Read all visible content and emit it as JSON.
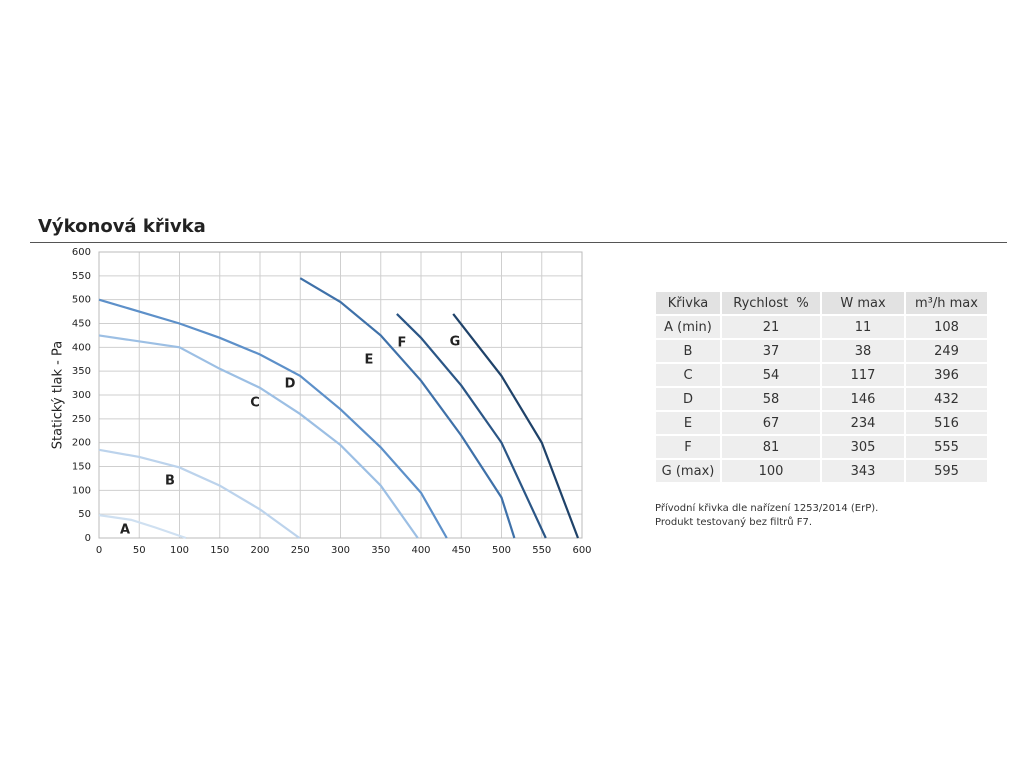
{
  "title": "Výkonová křivka",
  "chart_data": {
    "type": "line",
    "ylabel": "Statický tlak - Pa",
    "xlim": [
      0,
      600
    ],
    "xticks": [
      0,
      50,
      100,
      150,
      200,
      250,
      300,
      350,
      400,
      450,
      500,
      550,
      600
    ],
    "ylim": [
      0,
      600
    ],
    "yticks": [
      0,
      50,
      100,
      150,
      200,
      250,
      300,
      350,
      400,
      450,
      500,
      550,
      600
    ],
    "grid": true,
    "series": [
      {
        "name": "A",
        "color": "#cfe0f1",
        "x": [
          0,
          40,
          70,
          108
        ],
        "values": [
          48,
          38,
          22,
          0
        ]
      },
      {
        "name": "B",
        "color": "#bcd3ec",
        "x": [
          0,
          50,
          100,
          150,
          200,
          249
        ],
        "values": [
          185,
          170,
          148,
          110,
          60,
          0
        ]
      },
      {
        "name": "C",
        "color": "#9cbfe4",
        "x": [
          0,
          100,
          150,
          200,
          250,
          300,
          350,
          396
        ],
        "values": [
          425,
          400,
          355,
          315,
          260,
          195,
          110,
          0
        ]
      },
      {
        "name": "D",
        "color": "#5d90c9",
        "x": [
          0,
          100,
          150,
          200,
          250,
          300,
          350,
          400,
          432
        ],
        "values": [
          500,
          450,
          420,
          385,
          340,
          270,
          190,
          95,
          0
        ]
      },
      {
        "name": "E",
        "color": "#3f71a9",
        "x": [
          250,
          300,
          350,
          400,
          450,
          500,
          516
        ],
        "values": [
          545,
          495,
          425,
          330,
          215,
          85,
          0
        ]
      },
      {
        "name": "F",
        "color": "#2b5686",
        "x": [
          370,
          400,
          450,
          500,
          555
        ],
        "values": [
          470,
          420,
          320,
          200,
          0
        ]
      },
      {
        "name": "G",
        "color": "#1f4269",
        "x": [
          440,
          500,
          550,
          595
        ],
        "values": [
          470,
          340,
          200,
          0
        ]
      }
    ]
  },
  "table": {
    "header": [
      "Křivka",
      "Rychlost  %",
      "W max",
      "m³/h max"
    ],
    "rows": [
      [
        "A (min)",
        "21",
        "11",
        "108"
      ],
      [
        "B",
        "37",
        "38",
        "249"
      ],
      [
        "C",
        "54",
        "117",
        "396"
      ],
      [
        "D",
        "58",
        "146",
        "432"
      ],
      [
        "E",
        "67",
        "234",
        "516"
      ],
      [
        "F",
        "81",
        "305",
        "555"
      ],
      [
        "G (max)",
        "100",
        "343",
        "595"
      ]
    ]
  },
  "notes": [
    "Přívodní křivka dle nařízení 1253/2014 (ErP).",
    "Produkt testovaný bez filtrů F7."
  ]
}
